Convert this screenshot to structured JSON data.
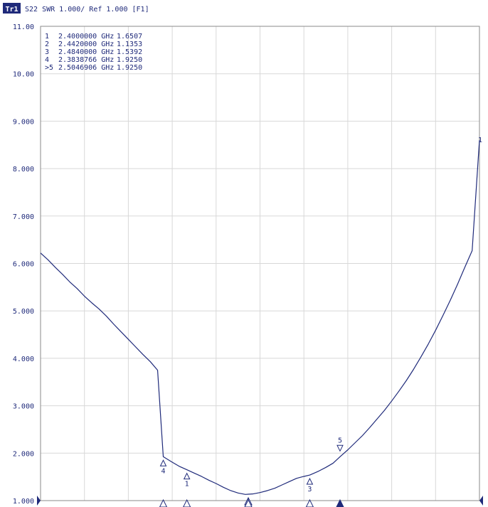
{
  "header": {
    "trace_badge": "Tr1",
    "trace_text": "S22 SWR 1.000/ Ref 1.000 [F1]"
  },
  "colors": {
    "trace": "#1f2a7a",
    "grid": "#d8d8d8",
    "frame": "#8a8a8a",
    "axis_text": "#1f2a7a",
    "badge_bg": "#1f2a7a",
    "badge_text": "#ffffff"
  },
  "chart_data": {
    "type": "line",
    "title": "S22 SWR 1.000/ Ref 1.000 [F1]",
    "xlabel": "",
    "ylabel": "",
    "ylim": [
      1.0,
      11.0
    ],
    "yticks": [
      "11.00",
      "10.00",
      "9.000",
      "8.000",
      "7.000",
      "6.000",
      "5.000",
      "4.000",
      "3.000",
      "2.000",
      "1.000"
    ],
    "xrange_ghz": [
      2.3,
      2.6
    ],
    "grid": true,
    "series": [
      {
        "values": [
          [
            2.3,
            6.22
          ],
          [
            2.305,
            6.08
          ],
          [
            2.31,
            5.92
          ],
          [
            2.315,
            5.77
          ],
          [
            2.32,
            5.61
          ],
          [
            2.325,
            5.47
          ],
          [
            2.33,
            5.31
          ],
          [
            2.335,
            5.17
          ],
          [
            2.34,
            5.04
          ],
          [
            2.345,
            4.89
          ],
          [
            2.35,
            4.72
          ],
          [
            2.355,
            4.56
          ],
          [
            2.36,
            4.4
          ],
          [
            2.365,
            4.24
          ],
          [
            2.37,
            4.08
          ],
          [
            2.375,
            3.93
          ],
          [
            2.38,
            3.75
          ],
          [
            2.3838766,
            1.925
          ],
          [
            2.39,
            1.81
          ],
          [
            2.395,
            1.72
          ],
          [
            2.4,
            1.6507
          ],
          [
            2.405,
            1.58
          ],
          [
            2.41,
            1.51
          ],
          [
            2.415,
            1.43
          ],
          [
            2.42,
            1.36
          ],
          [
            2.425,
            1.28
          ],
          [
            2.43,
            1.21
          ],
          [
            2.435,
            1.16
          ],
          [
            2.44,
            1.13
          ],
          [
            2.442,
            1.1353
          ],
          [
            2.445,
            1.14
          ],
          [
            2.45,
            1.17
          ],
          [
            2.455,
            1.21
          ],
          [
            2.46,
            1.26
          ],
          [
            2.465,
            1.33
          ],
          [
            2.47,
            1.4
          ],
          [
            2.475,
            1.47
          ],
          [
            2.48,
            1.51
          ],
          [
            2.484,
            1.5392
          ],
          [
            2.49,
            1.62
          ],
          [
            2.495,
            1.7
          ],
          [
            2.5,
            1.79
          ],
          [
            2.5046906,
            1.925
          ],
          [
            2.51,
            2.07
          ],
          [
            2.515,
            2.22
          ],
          [
            2.52,
            2.37
          ],
          [
            2.525,
            2.54
          ],
          [
            2.53,
            2.72
          ],
          [
            2.535,
            2.9
          ],
          [
            2.54,
            3.1
          ],
          [
            2.545,
            3.31
          ],
          [
            2.55,
            3.53
          ],
          [
            2.555,
            3.77
          ],
          [
            2.56,
            4.03
          ],
          [
            2.565,
            4.3
          ],
          [
            2.57,
            4.59
          ],
          [
            2.575,
            4.9
          ],
          [
            2.58,
            5.22
          ],
          [
            2.585,
            5.56
          ],
          [
            2.59,
            5.92
          ],
          [
            2.595,
            6.27
          ],
          [
            2.6,
            8.6
          ]
        ]
      }
    ],
    "markers": [
      {
        "id": "1",
        "list_label": "1",
        "freq": "2.4000000 GHz",
        "value": "1.6507",
        "x": 2.4,
        "y": 1.6507
      },
      {
        "id": "2",
        "list_label": "2",
        "freq": "2.4420000 GHz",
        "value": "1.1353",
        "x": 2.442,
        "y": 1.1353
      },
      {
        "id": "3",
        "list_label": "3",
        "freq": "2.4840000 GHz",
        "value": "1.5392",
        "x": 2.484,
        "y": 1.5392
      },
      {
        "id": "4",
        "list_label": "4",
        "freq": "2.3838766 GHz",
        "value": "1.9250",
        "x": 2.3838766,
        "y": 1.925
      },
      {
        "id": "5",
        "list_label": ">5",
        "freq": "2.5046906 GHz",
        "value": "1.9250",
        "x": 2.5046906,
        "y": 1.925
      }
    ],
    "trace_end_label": "1"
  }
}
